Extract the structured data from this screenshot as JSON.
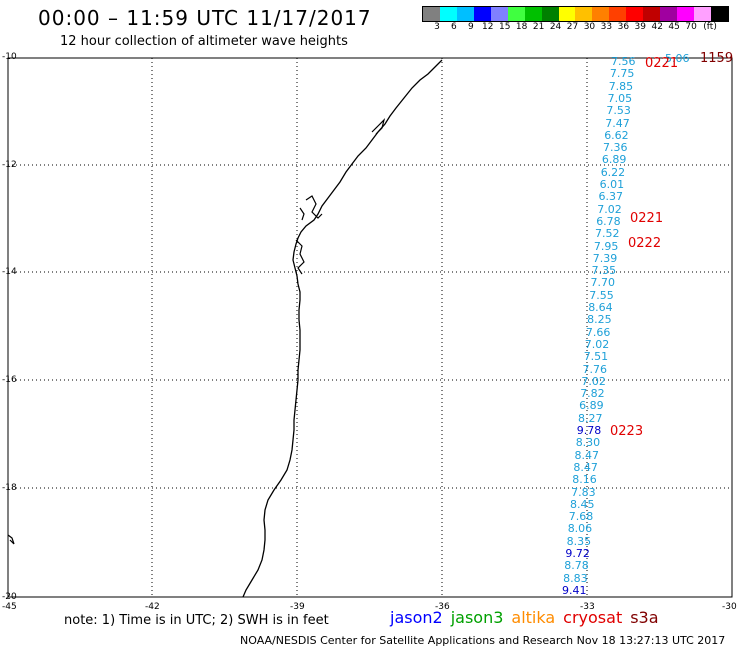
{
  "title": "00:00 – 11:59 UTC 11/17/2017",
  "subtitle": "12 hour collection of altimeter wave heights",
  "legend": {
    "colors": [
      "#808080",
      "#00ffff",
      "#00bfff",
      "#0000ff",
      "#8080ff",
      "#40ff40",
      "#00c000",
      "#008000",
      "#ffff00",
      "#ffc000",
      "#ff8000",
      "#ff4000",
      "#ff0000",
      "#c00000",
      "#a000a0",
      "#ff00ff",
      "#ffa0ff",
      "#000000"
    ],
    "labels": [
      "3",
      "6",
      "9",
      "12",
      "15",
      "18",
      "21",
      "24",
      "27",
      "30",
      "33",
      "36",
      "39",
      "42",
      "45",
      "70",
      "(ft)"
    ]
  },
  "axes": {
    "lat_labels": [
      "-10",
      "-12",
      "-14",
      "-16",
      "-18",
      "-20"
    ],
    "lon_labels": [
      "-45",
      "-42",
      "-39",
      "-36",
      "-33",
      "-30"
    ]
  },
  "wave_readings": [
    {
      "v": "7.56",
      "c": "#1ea0d8"
    },
    {
      "v": "7.75",
      "c": "#1ea0d8"
    },
    {
      "v": "7.85",
      "c": "#1ea0d8"
    },
    {
      "v": "7.05",
      "c": "#1ea0d8"
    },
    {
      "v": "7.53",
      "c": "#1ea0d8"
    },
    {
      "v": "7.47",
      "c": "#1ea0d8"
    },
    {
      "v": "6.62",
      "c": "#1ea0d8"
    },
    {
      "v": "7.36",
      "c": "#1ea0d8"
    },
    {
      "v": "6.89",
      "c": "#1ea0d8"
    },
    {
      "v": "6.22",
      "c": "#1ea0d8"
    },
    {
      "v": "6.01",
      "c": "#1ea0d8"
    },
    {
      "v": "6.37",
      "c": "#1ea0d8"
    },
    {
      "v": "7.02",
      "c": "#1ea0d8"
    },
    {
      "v": "6.78",
      "c": "#1ea0d8"
    },
    {
      "v": "7.52",
      "c": "#1ea0d8"
    },
    {
      "v": "7.95",
      "c": "#1ea0d8"
    },
    {
      "v": "7.39",
      "c": "#1ea0d8"
    },
    {
      "v": "7.35",
      "c": "#1ea0d8"
    },
    {
      "v": "7.70",
      "c": "#1ea0d8"
    },
    {
      "v": "7.55",
      "c": "#1ea0d8"
    },
    {
      "v": "8.64",
      "c": "#1ea0d8"
    },
    {
      "v": "8.25",
      "c": "#1ea0d8"
    },
    {
      "v": "7.66",
      "c": "#1ea0d8"
    },
    {
      "v": "7.02",
      "c": "#1ea0d8"
    },
    {
      "v": "7.51",
      "c": "#1ea0d8"
    },
    {
      "v": "7.76",
      "c": "#1ea0d8"
    },
    {
      "v": "7.02",
      "c": "#1ea0d8"
    },
    {
      "v": "7.82",
      "c": "#1ea0d8"
    },
    {
      "v": "6.89",
      "c": "#1ea0d8"
    },
    {
      "v": "8.27",
      "c": "#1ea0d8"
    },
    {
      "v": "9.78",
      "c": "#0000c8"
    },
    {
      "v": "8.30",
      "c": "#1ea0d8"
    },
    {
      "v": "8.47",
      "c": "#1ea0d8"
    },
    {
      "v": "8.47",
      "c": "#1ea0d8"
    },
    {
      "v": "8.16",
      "c": "#1ea0d8"
    },
    {
      "v": "7.83",
      "c": "#1ea0d8"
    },
    {
      "v": "8.45",
      "c": "#1ea0d8"
    },
    {
      "v": "7.68",
      "c": "#1ea0d8"
    },
    {
      "v": "8.06",
      "c": "#1ea0d8"
    },
    {
      "v": "8.35",
      "c": "#1ea0d8"
    },
    {
      "v": "9.72",
      "c": "#0000c8"
    },
    {
      "v": "8.78",
      "c": "#1ea0d8"
    },
    {
      "v": "8.83",
      "c": "#1ea0d8"
    },
    {
      "v": "9.41",
      "c": "#0000c8"
    }
  ],
  "extra_reading": {
    "v": "5.06",
    "c": "#1ea0d8"
  },
  "time_labels": [
    {
      "t": "0221",
      "c": "#e00000"
    },
    {
      "t": "1159",
      "c": "#800000"
    },
    {
      "t": "0221",
      "c": "#e00000"
    },
    {
      "t": "0222",
      "c": "#e00000"
    },
    {
      "t": "0223",
      "c": "#e00000"
    }
  ],
  "note": "note: 1) Time is in UTC; 2) SWH is in feet",
  "satellites": [
    {
      "name": "jason2",
      "c": "#0000ff"
    },
    {
      "name": "jason3",
      "c": "#00a000"
    },
    {
      "name": "altika",
      "c": "#ff8c00"
    },
    {
      "name": "cryosat",
      "c": "#e00000"
    },
    {
      "name": "s3a",
      "c": "#800000"
    }
  ],
  "footer": "NOAA/NESDIS Center for Satellite Applications and Research     Nov 18 13:27:13 UTC 2017"
}
